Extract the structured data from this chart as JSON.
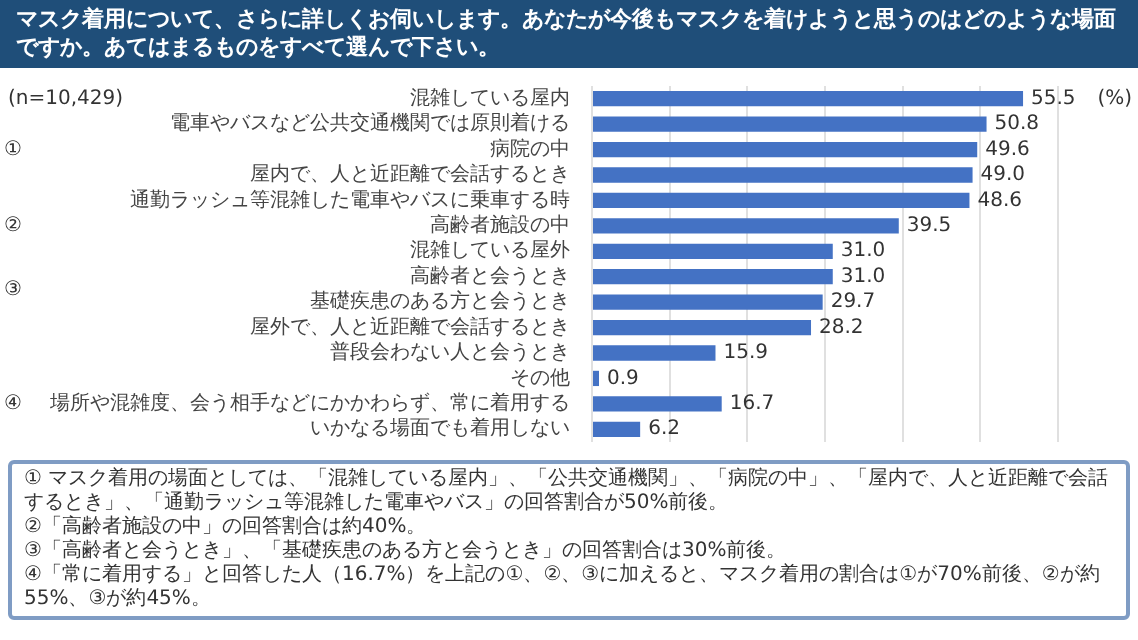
{
  "chart_data": {
    "type": "bar",
    "orientation": "horizontal",
    "title": "マスク着用について、さらに詳しくお伺いします。あなたが今後もマスクを着けようと思うのはどのような場面ですか。あてはまるものをすべて選んで下さい。",
    "categories": [
      "混雑している屋内",
      "電車やバスなど公共交通機関では原則着ける",
      "病院の中",
      "屋内で、人と近距離で会話するとき",
      "通勤ラッシュ等混雑した電車やバスに乗車する時",
      "高齢者施設の中",
      "混雑している屋外",
      "高齢者と会うとき",
      "基礎疾患のある方と会うとき",
      "屋外で、人と近距離で会話するとき",
      "普段会わない人と会うとき",
      "その他",
      "場所や混雑度、会う相手などにかかわらず、常に着用する",
      "いかなる場面でも着用しない"
    ],
    "values": [
      55.5,
      50.8,
      49.6,
      49.0,
      48.6,
      39.5,
      31.0,
      31.0,
      29.7,
      28.2,
      15.9,
      0.9,
      16.7,
      6.2
    ],
    "value_labels": [
      "55.5",
      "50.8",
      "49.6",
      "49.0",
      "48.6",
      "39.5",
      "31.0",
      "31.0",
      "29.7",
      "28.2",
      "15.9",
      "0.9",
      "16.7",
      "6.2"
    ],
    "color": "#4472c4",
    "grid": "x",
    "legend": false,
    "xlim": [
      0,
      60
    ],
    "xticks": [
      {
        "value": 0,
        "label": null
      },
      {
        "value": 10,
        "label": null
      },
      {
        "value": 20,
        "label": null
      },
      {
        "value": 30,
        "label": null
      },
      {
        "value": 40,
        "label": null
      },
      {
        "value": 50,
        "label": null
      },
      {
        "value": 60,
        "label": null
      }
    ],
    "annotations": [
      "(n=10,429)",
      "(%)",
      "①",
      "②",
      "③",
      "④",
      "① マスク着用の場面としては、「混雑している屋内」、「公共交通機関」、「病院の中」、「屋内で、人と近距離で会話するとき」、「通勤ラッシュ等混雑した電車やバス」の回答割合が50%前後。",
      "②「高齢者施設の中」の回答割合は約40%。",
      "③「高齢者と会うとき」、「基礎疾患のある方と会うとき」の回答割合は30%前後。",
      "④「常に着用する」と回答した人（16.7%）を上記の①、②、③に加えると、マスク着用の割合は①が70%前後、②が約55%、③が約45%。"
    ]
  }
}
